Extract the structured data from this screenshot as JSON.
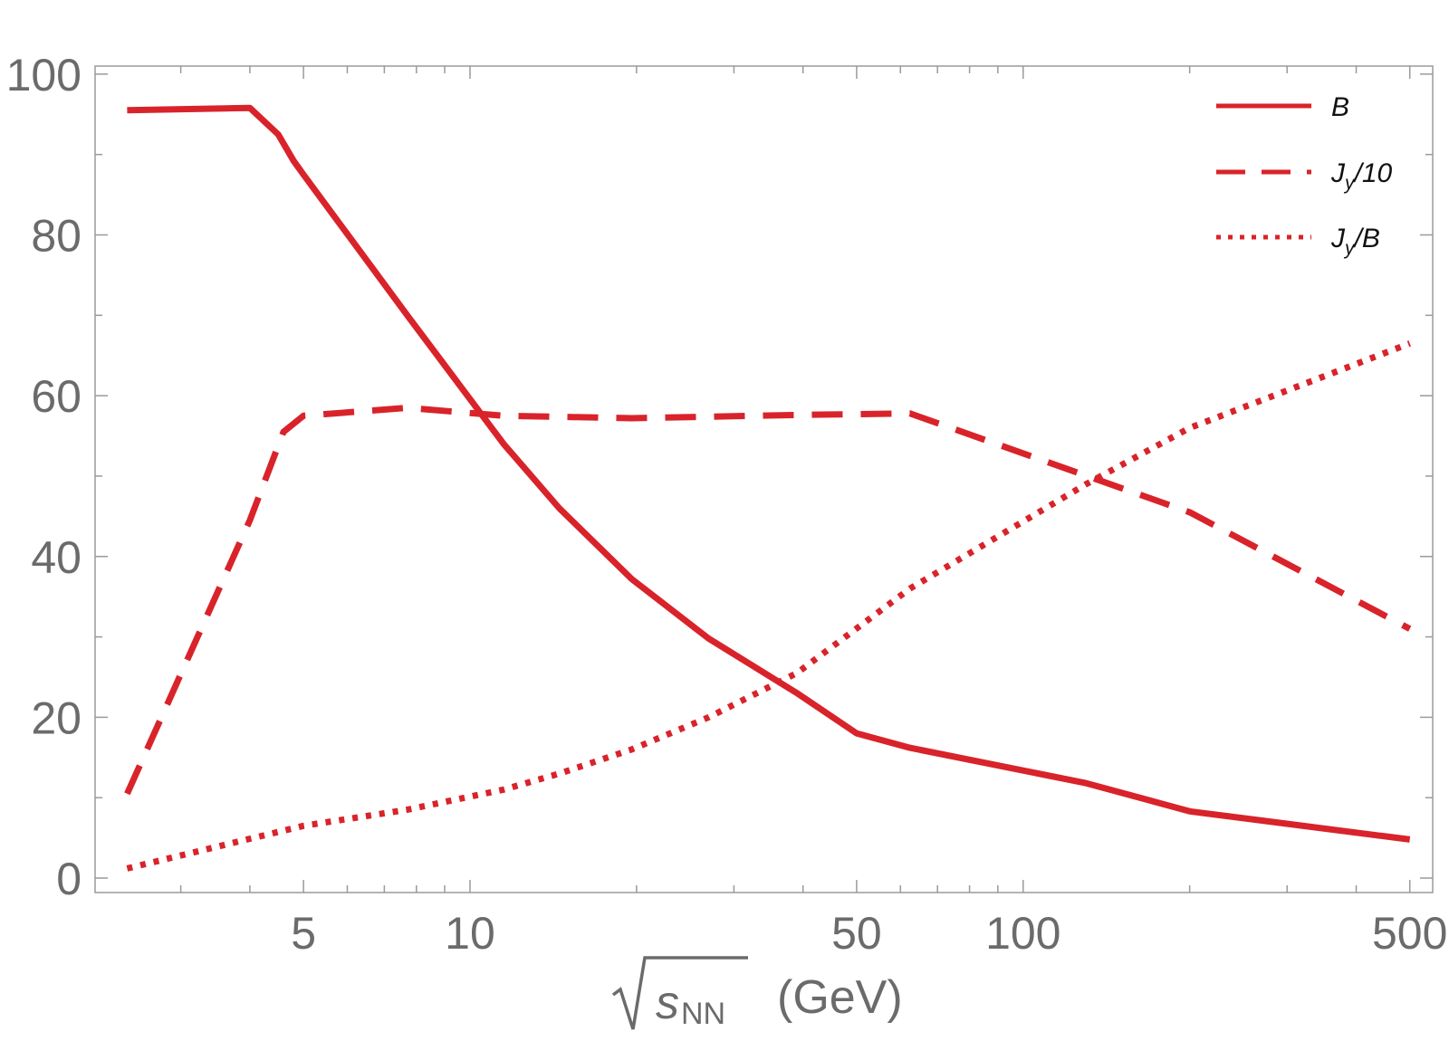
{
  "chart_data": {
    "type": "line",
    "title": "",
    "xscale": "log",
    "xlim": [
      2.1,
      550
    ],
    "ylim": [
      -1.8,
      101
    ],
    "xticks": [
      5,
      10,
      50,
      100,
      500
    ],
    "xtick_labels": [
      "5",
      "10",
      "50",
      "100",
      "500"
    ],
    "yticks": [
      0,
      20,
      40,
      60,
      80,
      100
    ],
    "ytick_labels": [
      "0",
      "20",
      "40",
      "60",
      "80",
      "100"
    ],
    "xlabel": {
      "symbol": "s",
      "subscript": "NN",
      "unit": "(GeV)"
    },
    "ylabel": "",
    "color": "#d9232a",
    "legend_position": "top-right",
    "series": [
      {
        "name": "B",
        "legend": {
          "main": "B",
          "sub": "",
          "rest": ""
        },
        "style": "solid",
        "x": [
          2.4,
          4.0,
          4.5,
          4.8,
          5.0,
          7.7,
          11.5,
          14.5,
          19.6,
          27,
          39,
          50,
          62.4,
          130,
          200,
          500
        ],
        "y": [
          95.5,
          95.8,
          92.5,
          89.2,
          87.5,
          70,
          54,
          46,
          37.2,
          29.8,
          23,
          18,
          16.2,
          11.8,
          8.3,
          4.8
        ]
      },
      {
        "name": "Jy/10",
        "legend": {
          "main": "J",
          "sub": "y",
          "rest": "/10"
        },
        "style": "dashed",
        "x": [
          2.4,
          4.0,
          4.6,
          5.0,
          7.7,
          11.5,
          19.6,
          39,
          62.4,
          200,
          500
        ],
        "y": [
          10.5,
          44.5,
          55.5,
          57.5,
          58.5,
          57.5,
          57.2,
          57.6,
          57.8,
          45.5,
          31
        ]
      },
      {
        "name": "Jy/B",
        "legend": {
          "main": "J",
          "sub": "y",
          "rest": "/B"
        },
        "style": "dotted",
        "x": [
          2.4,
          5.0,
          7.7,
          11.5,
          14.5,
          19.6,
          27,
          39,
          62.4,
          130,
          200,
          500
        ],
        "y": [
          1.2,
          6.5,
          8.5,
          11,
          13,
          16,
          20,
          25.5,
          36,
          49,
          56,
          66.5
        ]
      }
    ]
  }
}
